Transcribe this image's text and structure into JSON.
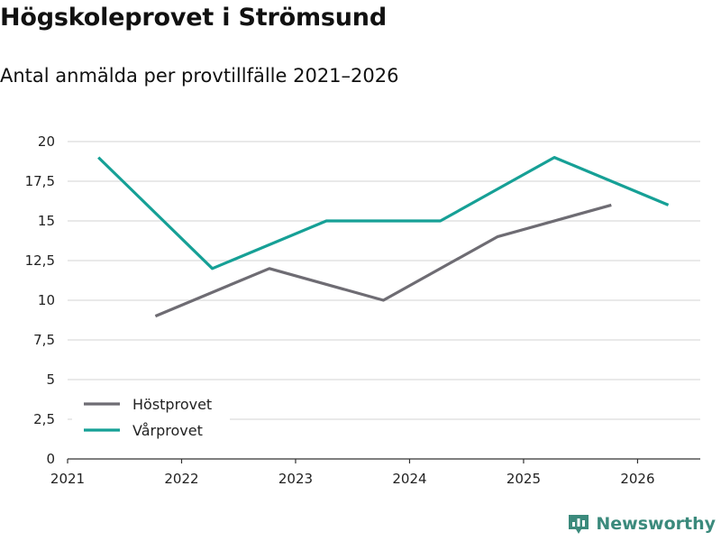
{
  "title": "Högskoleprovet i Strömsund",
  "subtitle": "Antal anmälda per provtillfälle 2021–2026",
  "brand": "Newsworthy",
  "colors": {
    "hostprovet": "#6e6c73",
    "varprovet": "#16a096",
    "brand": "#3b8a7c"
  },
  "chart_data": {
    "type": "line",
    "title": "Högskoleprovet i Strömsund",
    "subtitle": "Antal anmälda per provtillfälle 2021–2026",
    "xlabel": "",
    "ylabel": "",
    "xlim": [
      2021,
      2026.55
    ],
    "ylim": [
      0,
      20
    ],
    "yticks": [
      0,
      2.5,
      5,
      7.5,
      10,
      12.5,
      15,
      17.5,
      20
    ],
    "ytick_labels": [
      "0",
      "2,5",
      "5",
      "7,5",
      "10",
      "12,5",
      "15",
      "17,5",
      "20"
    ],
    "xticks": [
      2021,
      2022,
      2023,
      2024,
      2025,
      2026
    ],
    "xtick_labels": [
      "2021",
      "2022",
      "2023",
      "2024",
      "2025",
      "2026"
    ],
    "grid": true,
    "legend_position": "bottom-left",
    "series": [
      {
        "name": "Höstprovet",
        "color": "#6e6c73",
        "x": [
          2021.77,
          2022.77,
          2023.77,
          2024.77,
          2025.77
        ],
        "values": [
          9,
          12,
          10,
          14,
          16
        ]
      },
      {
        "name": "Vårprovet",
        "color": "#16a096",
        "x": [
          2021.27,
          2022.27,
          2023.27,
          2024.27,
          2025.27,
          2026.27
        ],
        "values": [
          19,
          12,
          15,
          15,
          19,
          16
        ]
      }
    ]
  }
}
